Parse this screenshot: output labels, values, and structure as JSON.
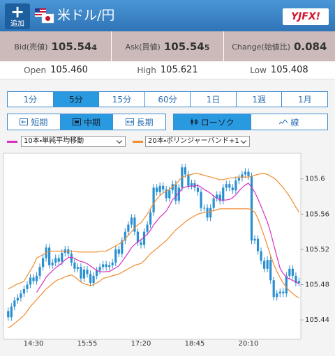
{
  "header": {
    "add_label": "追加",
    "title": "米ドル/円",
    "logo": "YJFX!"
  },
  "quotes": {
    "bid": {
      "label": "Bid(売値)",
      "value": "105.54",
      "pip": "4"
    },
    "ask": {
      "label": "Ask(買値)",
      "value": "105.54",
      "pip": "5"
    },
    "change": {
      "label": "Change(始値比)",
      "value": "0.084"
    }
  },
  "summary": [
    {
      "label": "Open",
      "value": "105.460"
    },
    {
      "label": "High",
      "value": "105.621"
    },
    {
      "label": "Low",
      "value": "105.408"
    }
  ],
  "periods": {
    "items": [
      "1分",
      "5分",
      "15分",
      "60分",
      "1日",
      "1週",
      "1月"
    ],
    "selected": 1
  },
  "terms": {
    "items": [
      "短期",
      "中期",
      "長期"
    ],
    "selected": 1
  },
  "styles": {
    "items": [
      "ローソク",
      "線"
    ],
    "selected": 0
  },
  "chart_data": {
    "type": "candlestick",
    "color": "#2a8fd0",
    "categories": [
      null,
      null,
      null,
      null,
      null,
      null,
      null,
      null,
      "14:30",
      null,
      null,
      null,
      null,
      null,
      null,
      null,
      null,
      null,
      null,
      null,
      null,
      null,
      null,
      null,
      null,
      "15:55",
      null,
      null,
      null,
      null,
      null,
      null,
      null,
      null,
      null,
      null,
      null,
      null,
      null,
      null,
      null,
      null,
      "17:20",
      null,
      null,
      null,
      null,
      null,
      null,
      null,
      null,
      null,
      null,
      null,
      null,
      null,
      null,
      null,
      null,
      "18:45",
      null,
      null,
      null,
      null,
      null,
      null,
      null,
      null,
      null,
      null,
      null,
      null,
      null,
      null,
      null,
      null,
      "20:10",
      null,
      null,
      null,
      null,
      null,
      null,
      null,
      null,
      null,
      null,
      null,
      null,
      null,
      null,
      null,
      null
    ],
    "ohlc": [
      [
        105.45,
        105.454,
        105.439,
        105.443
      ],
      [
        105.443,
        105.459,
        105.439,
        105.455
      ],
      [
        105.455,
        105.466,
        105.451,
        105.462
      ],
      [
        105.462,
        105.469,
        105.458,
        105.465
      ],
      [
        105.465,
        105.474,
        105.461,
        105.47
      ],
      [
        105.47,
        105.479,
        105.466,
        105.475
      ],
      [
        105.475,
        105.484,
        105.471,
        105.48
      ],
      [
        105.48,
        105.492,
        105.476,
        105.488
      ],
      [
        105.488,
        105.492,
        105.48,
        105.484
      ],
      [
        105.484,
        105.494,
        105.48,
        105.49
      ],
      [
        105.49,
        105.504,
        105.486,
        105.5
      ],
      [
        105.5,
        105.514,
        105.496,
        105.51
      ],
      [
        105.51,
        105.526,
        105.506,
        105.522
      ],
      [
        105.522,
        105.526,
        105.498,
        105.502
      ],
      [
        105.502,
        105.509,
        105.498,
        105.505
      ],
      [
        105.505,
        105.514,
        105.501,
        105.51
      ],
      [
        105.51,
        105.514,
        105.502,
        105.506
      ],
      [
        105.506,
        105.52,
        105.502,
        105.516
      ],
      [
        105.516,
        105.524,
        105.512,
        105.52
      ],
      [
        105.52,
        105.524,
        105.511,
        105.515
      ],
      [
        105.515,
        105.519,
        105.501,
        105.505
      ],
      [
        105.505,
        105.509,
        105.494,
        105.498
      ],
      [
        105.498,
        105.504,
        105.494,
        105.5
      ],
      [
        105.5,
        105.504,
        105.483,
        105.487
      ],
      [
        105.487,
        105.501,
        105.483,
        105.497
      ],
      [
        105.497,
        105.501,
        105.488,
        105.492
      ],
      [
        105.492,
        105.496,
        105.478,
        105.482
      ],
      [
        105.482,
        105.494,
        105.478,
        105.49
      ],
      [
        105.49,
        105.5,
        105.486,
        105.496
      ],
      [
        105.496,
        105.504,
        105.492,
        105.5
      ],
      [
        105.5,
        105.507,
        105.496,
        105.503
      ],
      [
        105.503,
        105.507,
        105.496,
        105.5
      ],
      [
        105.5,
        105.506,
        105.496,
        105.502
      ],
      [
        105.502,
        105.509,
        105.498,
        105.505
      ],
      [
        105.505,
        105.524,
        105.501,
        105.52
      ],
      [
        105.52,
        105.524,
        105.511,
        105.515
      ],
      [
        105.515,
        105.534,
        105.511,
        105.53
      ],
      [
        105.53,
        105.544,
        105.526,
        105.54
      ],
      [
        105.54,
        105.552,
        105.536,
        105.548
      ],
      [
        105.548,
        105.56,
        105.544,
        105.556
      ],
      [
        105.556,
        105.56,
        105.536,
        105.54
      ],
      [
        105.54,
        105.544,
        105.524,
        105.528
      ],
      [
        105.528,
        105.532,
        105.521,
        105.525
      ],
      [
        105.525,
        105.544,
        105.521,
        105.54
      ],
      [
        105.54,
        105.552,
        105.536,
        105.548
      ],
      [
        105.548,
        105.566,
        105.544,
        105.562
      ],
      [
        105.562,
        105.594,
        105.558,
        105.59
      ],
      [
        105.59,
        105.594,
        105.581,
        105.585
      ],
      [
        105.585,
        105.596,
        105.581,
        105.592
      ],
      [
        105.592,
        105.596,
        105.584,
        105.588
      ],
      [
        105.588,
        105.592,
        105.574,
        105.578
      ],
      [
        105.578,
        105.591,
        105.574,
        105.587
      ],
      [
        105.587,
        105.598,
        105.583,
        105.594
      ],
      [
        105.594,
        105.598,
        105.571,
        105.575
      ],
      [
        105.575,
        105.594,
        105.571,
        105.59
      ],
      [
        105.59,
        105.617,
        105.586,
        105.613
      ],
      [
        105.613,
        105.617,
        105.601,
        105.605
      ],
      [
        105.605,
        105.609,
        105.588,
        105.592
      ],
      [
        105.592,
        105.599,
        105.588,
        105.595
      ],
      [
        105.595,
        105.599,
        105.586,
        105.59
      ],
      [
        105.59,
        105.594,
        105.581,
        105.585
      ],
      [
        105.585,
        105.589,
        105.563,
        105.567
      ],
      [
        105.567,
        105.571,
        105.563,
        105.567
      ],
      [
        105.567,
        105.571,
        105.552,
        105.556
      ],
      [
        105.556,
        105.571,
        105.552,
        105.567
      ],
      [
        105.567,
        105.582,
        105.563,
        105.578
      ],
      [
        105.578,
        105.586,
        105.574,
        105.582
      ],
      [
        105.582,
        105.586,
        105.571,
        105.575
      ],
      [
        105.575,
        105.594,
        105.571,
        105.59
      ],
      [
        105.59,
        105.598,
        105.586,
        105.594
      ],
      [
        105.594,
        105.598,
        105.586,
        105.59
      ],
      [
        105.59,
        105.594,
        105.583,
        105.587
      ],
      [
        105.587,
        105.602,
        105.583,
        105.598
      ],
      [
        105.598,
        105.605,
        105.594,
        105.601
      ],
      [
        105.601,
        105.609,
        105.597,
        105.605
      ],
      [
        105.605,
        105.612,
        105.601,
        105.608
      ],
      [
        105.608,
        105.612,
        105.599,
        105.603
      ],
      [
        105.603,
        105.607,
        105.526,
        105.53
      ],
      [
        105.53,
        105.536,
        105.526,
        105.532
      ],
      [
        105.532,
        105.536,
        105.514,
        105.518
      ],
      [
        105.518,
        105.522,
        105.503,
        105.507
      ],
      [
        105.507,
        105.511,
        105.494,
        105.498
      ],
      [
        105.498,
        105.512,
        105.494,
        105.508
      ],
      [
        105.508,
        105.512,
        105.481,
        105.485
      ],
      [
        105.485,
        105.489,
        105.462,
        105.466
      ],
      [
        105.466,
        105.474,
        105.462,
        105.47
      ],
      [
        105.47,
        105.476,
        105.466,
        105.472
      ],
      [
        105.472,
        105.476,
        105.466,
        105.47
      ],
      [
        105.47,
        105.494,
        105.466,
        105.49
      ],
      [
        105.49,
        105.502,
        105.486,
        105.498
      ],
      [
        105.498,
        105.502,
        105.486,
        105.49
      ],
      [
        105.49,
        105.494,
        105.478,
        105.482
      ],
      [
        105.482,
        105.488,
        105.478,
        105.484
      ]
    ],
    "ma": {
      "name": "10本・単純平均移動",
      "color": "#d62fbf",
      "values": [
        null,
        null,
        null,
        null,
        null,
        null,
        null,
        null,
        null,
        105.4712,
        105.4769,
        105.4824,
        105.4884,
        105.4921,
        105.4956,
        105.4991,
        105.5017,
        105.5045,
        105.5081,
        105.5106,
        105.5111,
        105.5099,
        105.5077,
        105.5062,
        105.5054,
        105.5036,
        105.5012,
        105.4986,
        105.4962,
        105.4947,
        105.4945,
        105.4947,
        105.4949,
        105.4967,
        105.499,
        105.5013,
        105.5061,
        105.5111,
        105.5163,
        105.5219,
        105.5256,
        105.5284,
        105.5307,
        105.5342,
        105.537,
        105.5417,
        105.5477,
        105.5522,
        105.5566,
        105.5598,
        105.5636,
        105.5695,
        105.5764,
        105.5799,
        105.5841,
        105.5892,
        105.5907,
        105.5914,
        105.5917,
        105.5919,
        105.5926,
        105.5906,
        105.5879,
        105.586,
        105.5837,
        105.5802,
        105.5779,
        105.5762,
        105.5757,
        105.5761,
        105.5766,
        105.5786,
        105.5817,
        105.5862,
        105.59,
        105.593,
        105.5951,
        105.5906,
        105.5848,
        105.5772,
        105.5689,
        105.56,
        105.551,
        105.5394,
        105.5255,
        105.5117,
        105.4986,
        105.4926,
        105.4884,
        105.4864,
        105.4847,
        105.4831,
        105.4807
      ]
    },
    "bands": {
      "name": "20本・ボリンジャーバンド+1",
      "color": "#f08c2e",
      "upper": [
        105.475,
        105.477,
        105.479,
        105.481,
        105.482,
        105.484,
        105.49,
        105.496,
        105.502,
        105.51,
        105.512,
        105.514,
        105.516,
        105.518,
        105.518,
        105.518,
        105.518,
        105.518,
        105.518,
        105.518,
        105.518,
        105.518,
        105.517,
        105.517,
        105.517,
        105.517,
        105.517,
        105.517,
        105.517,
        105.518,
        105.518,
        105.518,
        105.52,
        105.522,
        105.524,
        105.526,
        105.528,
        105.532,
        105.536,
        105.54,
        105.544,
        105.548,
        105.55,
        105.555,
        105.56,
        105.566,
        105.572,
        105.577,
        105.581,
        105.584,
        105.586,
        105.588,
        105.591,
        105.594,
        105.598,
        105.602,
        105.603,
        105.604,
        105.605,
        105.606,
        105.606,
        105.605,
        105.604,
        105.603,
        105.602,
        105.601,
        105.6,
        105.599,
        105.599,
        105.6,
        105.601,
        105.601,
        105.602,
        105.602,
        105.602,
        105.602,
        105.602,
        105.603,
        105.604,
        105.605,
        105.606,
        105.606,
        105.605,
        105.603,
        105.601,
        105.598,
        105.594,
        105.59,
        105.585,
        105.58,
        105.574,
        105.568,
        105.562
      ],
      "lower": [
        105.431,
        105.433,
        105.436,
        105.439,
        105.442,
        105.445,
        105.45,
        105.455,
        105.459,
        105.463,
        105.467,
        105.471,
        105.475,
        105.478,
        105.481,
        105.484,
        105.486,
        105.487,
        105.489,
        105.49,
        105.491,
        105.489,
        105.486,
        105.483,
        105.481,
        105.48,
        105.479,
        105.48,
        105.482,
        105.484,
        105.487,
        105.488,
        105.489,
        105.49,
        105.491,
        105.492,
        105.494,
        105.496,
        105.498,
        105.5,
        105.502,
        105.503,
        105.504,
        105.507,
        105.511,
        105.515,
        105.518,
        105.521,
        105.524,
        105.527,
        105.53,
        105.534,
        105.538,
        105.542,
        105.545,
        105.548,
        105.551,
        105.554,
        105.556,
        105.558,
        105.56,
        105.561,
        105.562,
        105.562,
        105.563,
        105.564,
        105.565,
        105.566,
        105.566,
        105.566,
        105.566,
        105.566,
        105.566,
        105.566,
        105.566,
        105.566,
        105.566,
        105.565,
        105.562,
        105.555,
        105.545,
        105.535,
        105.524,
        105.513,
        105.503,
        105.495,
        105.488,
        105.482,
        105.477,
        105.473,
        105.47,
        105.467,
        105.465
      ]
    },
    "ylim": [
      105.418,
      105.629
    ],
    "yticks": [
      105.44,
      105.48,
      105.52,
      105.56,
      105.6
    ],
    "grid": false
  }
}
